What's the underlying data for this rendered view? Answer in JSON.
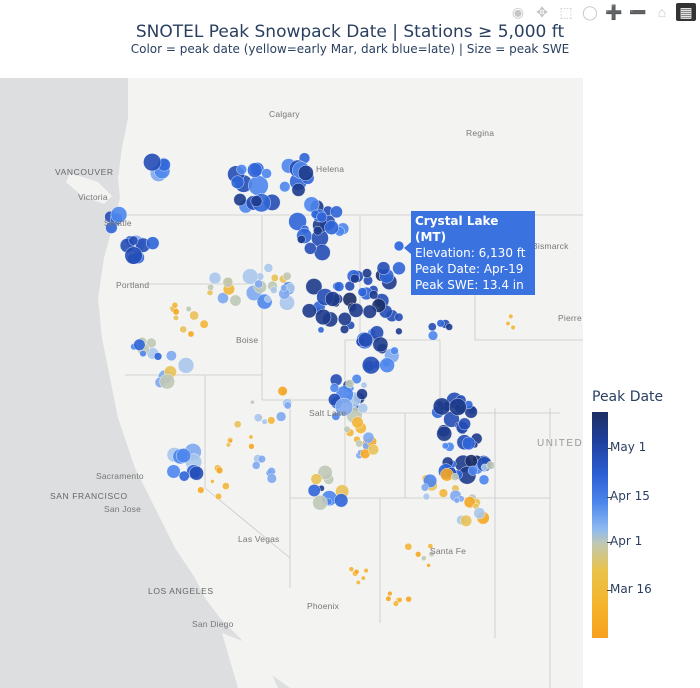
{
  "title": "SNOTEL Peak Snowpack Date  |  Stations ≥ 5,000 ft",
  "subtitle": "Color = peak date (yellow=early Mar, dark blue=late)  |  Size = peak SWE",
  "modebar": [
    "camera-icon",
    "pan-icon",
    "box-select-icon",
    "lasso-icon",
    "zoom-in-icon",
    "zoom-out-icon",
    "reset-icon",
    "plotly-logo-icon"
  ],
  "cities": [
    {
      "name": "Calgary",
      "caps": false
    },
    {
      "name": "Regina",
      "caps": false
    },
    {
      "name": "VANCOUVER",
      "caps": true
    },
    {
      "name": "Victoria",
      "caps": false
    },
    {
      "name": "Seattle",
      "caps": false
    },
    {
      "name": "Helena",
      "caps": false
    },
    {
      "name": "Bismarck",
      "caps": false
    },
    {
      "name": "Portland",
      "caps": false
    },
    {
      "name": "Pierre",
      "caps": false
    },
    {
      "name": "Boise",
      "caps": false
    },
    {
      "name": "Salt Lake",
      "caps": false
    },
    {
      "name": "Sacramento",
      "caps": false
    },
    {
      "name": "SAN FRANCISCO",
      "caps": true
    },
    {
      "name": "San Jose",
      "caps": false
    },
    {
      "name": "Las Vegas",
      "caps": false
    },
    {
      "name": "Santa Fe",
      "caps": false
    },
    {
      "name": "LOS ANGELES",
      "caps": true
    },
    {
      "name": "Phoenix",
      "caps": false
    },
    {
      "name": "San Diego",
      "caps": false
    }
  ],
  "country_label": "UNITED",
  "tooltip": {
    "station": "Crystal Lake (MT)",
    "elevation": "Elevation: 6,130 ft",
    "peak_date": "Peak Date: Apr-19",
    "peak_swe": "Peak SWE: 13.4 in"
  },
  "colorbar": {
    "title": "Peak Date",
    "ticks": [
      "May 1",
      "Apr 15",
      "Apr 1",
      "Mar 16"
    ]
  },
  "colors": {
    "early": "#f5a623",
    "mid": "#b9c6b8",
    "late": "#1e3a8a",
    "tooltip": "#3a73e0"
  }
}
